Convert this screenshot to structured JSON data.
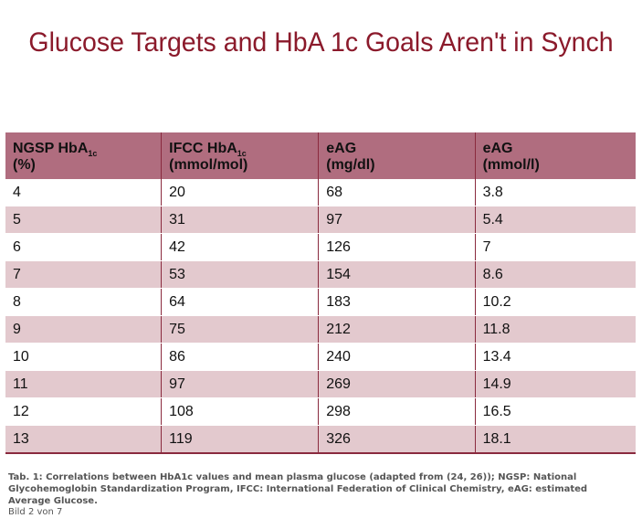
{
  "title": "Glucose Targets and HbA 1c Goals Aren't in Synch",
  "table": {
    "headers": [
      {
        "line1": "NGSP HbA",
        "sub": "1c",
        "line2": "(%)"
      },
      {
        "line1": "IFCC HbA",
        "sub": "1c",
        "line2": "(mmol/mol)"
      },
      {
        "line1": "eAG",
        "sub": "",
        "line2": "(mg/dl)"
      },
      {
        "line1": "eAG",
        "sub": "",
        "line2": "(mmol/l)"
      }
    ],
    "rows": [
      [
        "4",
        "20",
        "68",
        "3.8"
      ],
      [
        "5",
        "31",
        "97",
        "5.4"
      ],
      [
        "6",
        "42",
        "126",
        "7"
      ],
      [
        "7",
        "53",
        "154",
        "8.6"
      ],
      [
        "8",
        "64",
        "183",
        "10.2"
      ],
      [
        "9",
        "75",
        "212",
        "11.8"
      ],
      [
        "10",
        "86",
        "240",
        "13.4"
      ],
      [
        "11",
        "97",
        "269",
        "14.9"
      ],
      [
        "12",
        "108",
        "298",
        "16.5"
      ],
      [
        "13",
        "119",
        "326",
        "18.1"
      ]
    ]
  },
  "caption": "Tab. 1: Correlations between HbA1c values and mean plasma glucose (adapted from (24, 26)); NGSP: National Glycohemoglobin Standardization Program, IFCC: International Federation of Clinical Chemistry, eAG: estimated Average Glucose.",
  "bild": "Bild 2 von 7",
  "colors": {
    "title": "#8b1a2b",
    "header_bg": "#b06d7f",
    "row_alt_bg": "#e3c9ce",
    "divider": "#8a2a3e"
  }
}
